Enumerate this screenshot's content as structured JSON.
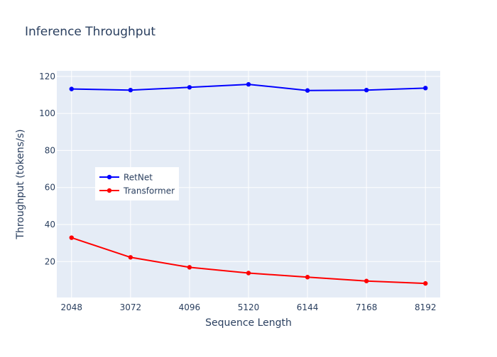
{
  "chart_data": {
    "type": "line",
    "title": "Inference Throughput",
    "xlabel": "Sequence Length",
    "ylabel": "Throughput (tokens/s)",
    "x": [
      2048,
      3072,
      4096,
      5120,
      6144,
      7168,
      8192
    ],
    "x_tick_labels": [
      "2048",
      "3072",
      "4096",
      "5120",
      "6144",
      "7168",
      "8192"
    ],
    "y_ticks": [
      20,
      40,
      60,
      80,
      100,
      120
    ],
    "y_tick_labels": [
      "20",
      "40",
      "60",
      "80",
      "100",
      "120"
    ],
    "xlim": [
      1792,
      8448
    ],
    "ylim": [
      0.6,
      123
    ],
    "grid": true,
    "legend_position": "left-middle",
    "series": [
      {
        "name": "RetNet",
        "color": "#0000ff",
        "values": [
          113.2,
          112.6,
          114.1,
          115.7,
          112.4,
          112.6,
          113.7
        ]
      },
      {
        "name": "Transformer",
        "color": "#ff0000",
        "values": [
          32.9,
          22.3,
          16.9,
          13.8,
          11.6,
          9.5,
          8.2
        ]
      }
    ],
    "colors": {
      "plot_background": "#e5ecf6",
      "grid": "#ffffff",
      "text": "#2a3f5f"
    }
  }
}
